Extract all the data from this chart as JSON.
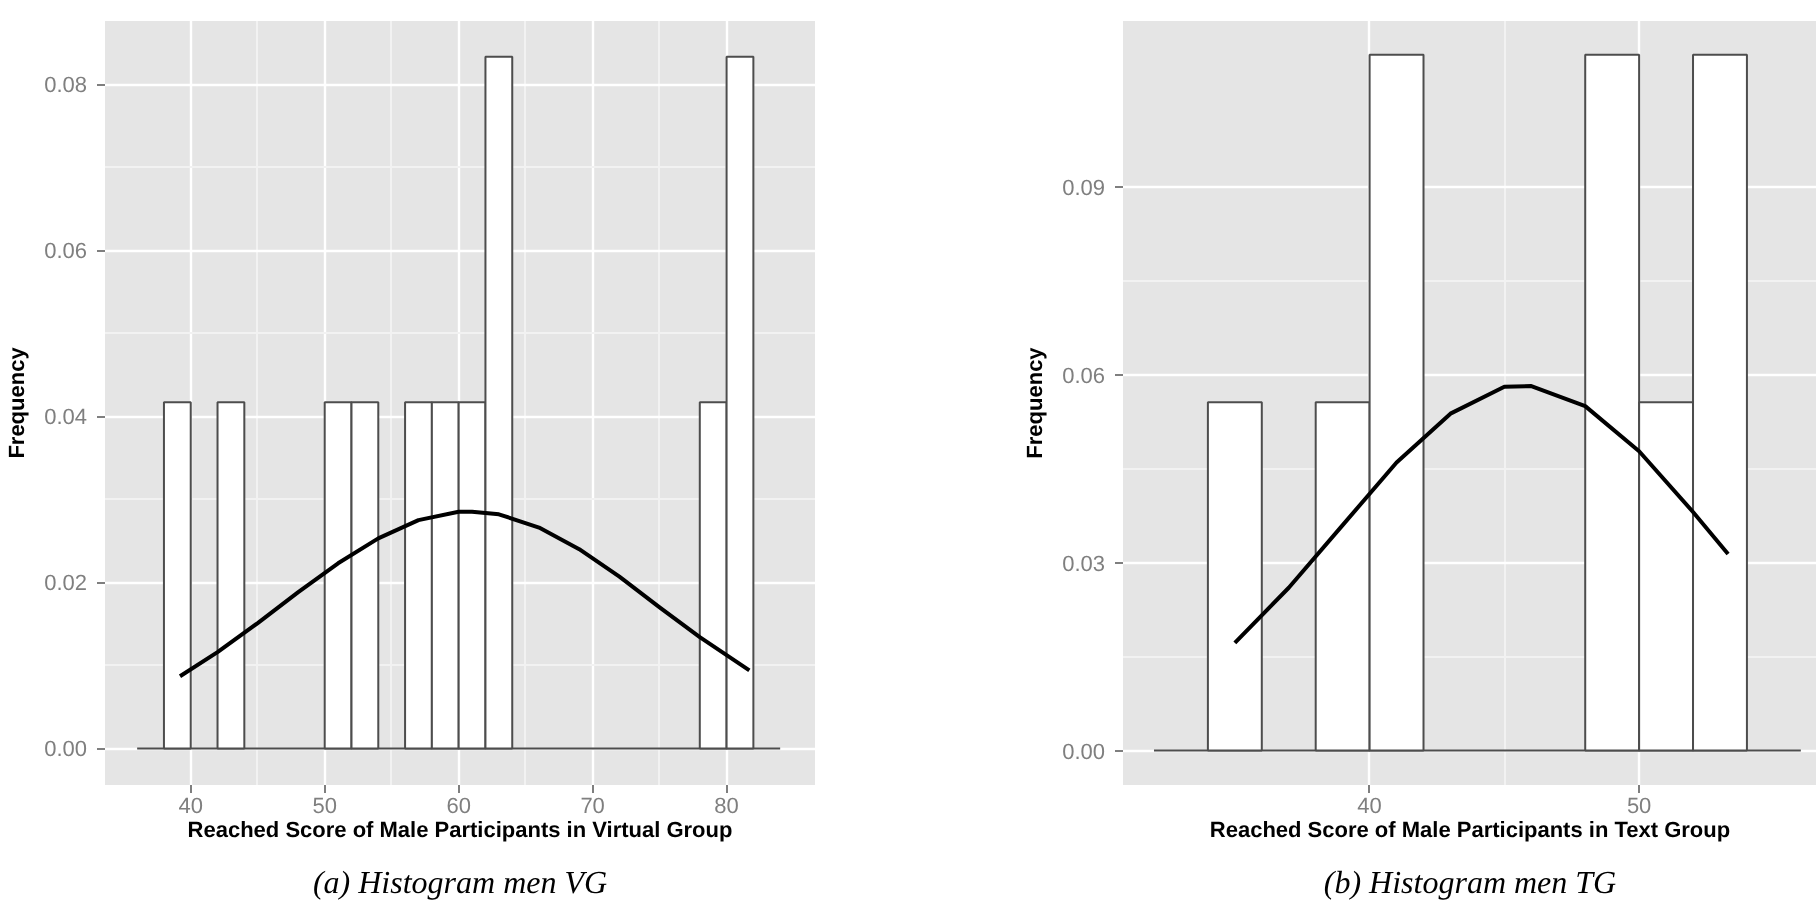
{
  "chart_data": [
    {
      "type": "histogram",
      "xlabel": "Reached Score of Male Participants in Virtual Group",
      "ylabel": "Frequency",
      "bins": [
        36,
        38,
        40,
        42,
        44,
        46,
        48,
        50,
        52,
        54,
        56,
        58,
        60,
        62,
        64,
        66,
        68,
        70,
        72,
        74,
        76,
        78,
        80,
        82,
        84
      ],
      "values": [
        0,
        0.0417,
        0,
        0.0417,
        0,
        0,
        0,
        0.0417,
        0.0417,
        0,
        0.0417,
        0.0417,
        0.0417,
        0.0833,
        0,
        0,
        0,
        0,
        0,
        0,
        0,
        0.0417,
        0.0833,
        0
      ],
      "color": "#ffffff",
      "series": [
        {
          "type": "line",
          "color": "#000000",
          "x": [
            39.2,
            42,
            45,
            48,
            51,
            54,
            57,
            60,
            61,
            63,
            66,
            69,
            72,
            75,
            78,
            81.7
          ],
          "values": [
            0.0087,
            0.0116,
            0.0151,
            0.0188,
            0.0223,
            0.0253,
            0.0275,
            0.0285,
            0.0285,
            0.0282,
            0.0266,
            0.024,
            0.0207,
            0.017,
            0.0134,
            0.0094
          ]
        }
      ],
      "xlim": [
        33.6,
        86.6
      ],
      "ylim": [
        -0.0044,
        0.0876
      ],
      "xticks": [
        40,
        50,
        60,
        70,
        80
      ],
      "yticks": [
        {
          "value": 0,
          "label": "0.00"
        },
        {
          "value": 0.02,
          "label": "0.02"
        },
        {
          "value": 0.04,
          "label": "0.04"
        },
        {
          "value": 0.06,
          "label": "0.06"
        },
        {
          "value": 0.08,
          "label": "0.08"
        }
      ],
      "grid": true,
      "annotations": [
        "(a) Histogram men VG"
      ]
    },
    {
      "type": "histogram",
      "xlabel": "Reached Score of Male Participants in Text Group",
      "ylabel": "Frequency",
      "bins": [
        32,
        34,
        36,
        38,
        40,
        42,
        44,
        46,
        48,
        50,
        52,
        54,
        56
      ],
      "values": [
        0,
        0.0556,
        0,
        0.0556,
        0.1111,
        0,
        0,
        0,
        0.1111,
        0.0556,
        0.1111,
        0
      ],
      "color": "#ffffff",
      "series": [
        {
          "type": "line",
          "color": "#000000",
          "x": [
            35,
            37,
            39,
            41,
            43,
            45,
            46,
            48,
            50,
            52,
            53.3
          ],
          "values": [
            0.0172,
            0.026,
            0.036,
            0.046,
            0.0538,
            0.0581,
            0.0582,
            0.055,
            0.0478,
            0.0381,
            0.0314
          ]
        }
      ],
      "xlim": [
        30.85,
        56.6
      ],
      "ylim": [
        -0.0055,
        0.1165
      ],
      "xticks": [
        40,
        50
      ],
      "yticks": [
        {
          "value": 0,
          "label": "0.00"
        },
        {
          "value": 0.03,
          "label": "0.03"
        },
        {
          "value": 0.06,
          "label": "0.06"
        },
        {
          "value": 0.09,
          "label": "0.09"
        }
      ],
      "grid": true,
      "annotations": [
        "(b) Histogram men TG"
      ]
    }
  ]
}
